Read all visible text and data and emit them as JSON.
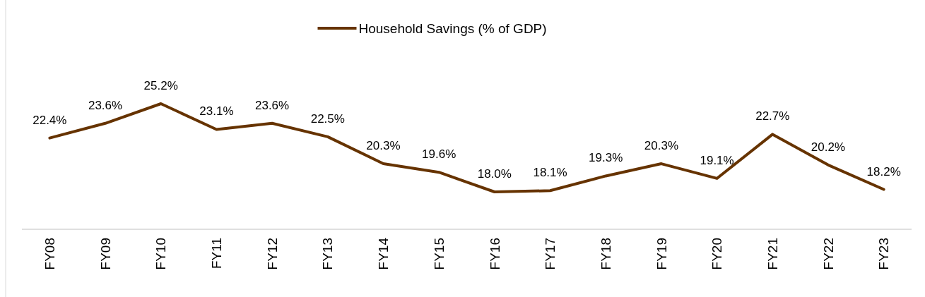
{
  "chart_data": {
    "type": "line",
    "categories": [
      "FY08",
      "FY09",
      "FY10",
      "FY11",
      "FY12",
      "FY13",
      "FY14",
      "FY15",
      "FY16",
      "FY17",
      "FY18",
      "FY19",
      "FY20",
      "FY21",
      "FY22",
      "FY23"
    ],
    "series": [
      {
        "name": "Household Savings (% of GDP)",
        "color": "#663300",
        "values": [
          22.4,
          23.6,
          25.2,
          23.1,
          23.6,
          22.5,
          20.3,
          19.6,
          18.0,
          18.1,
          19.3,
          20.3,
          19.1,
          22.7,
          20.2,
          18.2
        ],
        "value_labels": [
          "22.4%",
          "23.6%",
          "25.2%",
          "23.1%",
          "23.6%",
          "22.5%",
          "20.3%",
          "19.6%",
          "18.0%",
          "18.1%",
          "19.3%",
          "20.3%",
          "19.1%",
          "22.7%",
          "20.2%",
          "18.2%"
        ]
      }
    ],
    "tick_labels": "x",
    "legend": "top",
    "grid": false,
    "marker": "none",
    "line_style": "solid"
  }
}
